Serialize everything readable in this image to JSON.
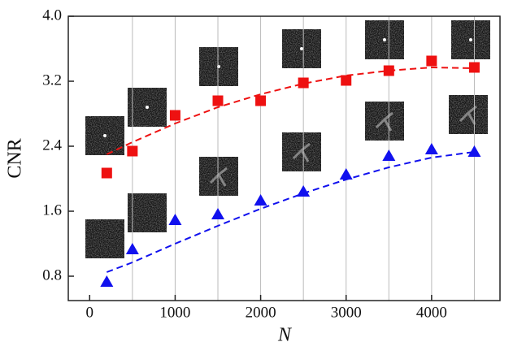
{
  "chart_data": {
    "type": "scatter",
    "xlabel": "N",
    "ylabel": "CNR",
    "x": [
      200,
      500,
      1000,
      1500,
      2000,
      2500,
      3000,
      3500,
      4000,
      4500
    ],
    "series": [
      {
        "color": "#ee1111",
        "marker": "square",
        "values": [
          2.07,
          2.34,
          2.78,
          2.96,
          2.96,
          3.18,
          3.21,
          3.33,
          3.45,
          3.37
        ]
      },
      {
        "color": "#1111ee",
        "marker": "triangle",
        "values": [
          0.73,
          1.13,
          1.49,
          1.56,
          1.73,
          1.84,
          2.05,
          2.28,
          2.36,
          2.33
        ]
      },
      {
        "color": "#ee1111",
        "marker": "dashed-line",
        "values": [
          2.3,
          2.45,
          2.68,
          2.88,
          3.04,
          3.17,
          3.27,
          3.33,
          3.37,
          3.36
        ]
      },
      {
        "color": "#1111ee",
        "marker": "dashed-line",
        "values": [
          0.85,
          0.97,
          1.2,
          1.42,
          1.63,
          1.82,
          1.99,
          2.14,
          2.26,
          2.33
        ]
      }
    ],
    "xlim": [
      -250,
      4800
    ],
    "ylim": [
      0.5,
      4.0
    ],
    "xticks": [
      0,
      1000,
      2000,
      3000,
      4000
    ],
    "yticks": [
      0.8,
      1.6,
      2.4,
      3.2,
      {
        "value": 4,
        "label": "4.0"
      }
    ],
    "x_gridlines": [
      500,
      1000,
      1500,
      2000,
      2500,
      3000,
      3500,
      4000,
      4500
    ]
  }
}
